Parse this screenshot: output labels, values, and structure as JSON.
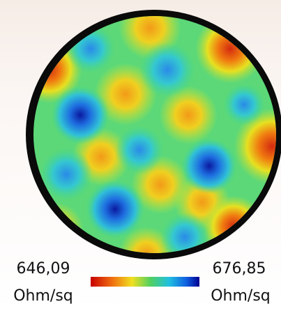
{
  "colorbar": {
    "min_label": "646,09",
    "min_unit": "Ohm/sq",
    "max_label": "676,85",
    "max_unit": "Ohm/sq"
  }
}
